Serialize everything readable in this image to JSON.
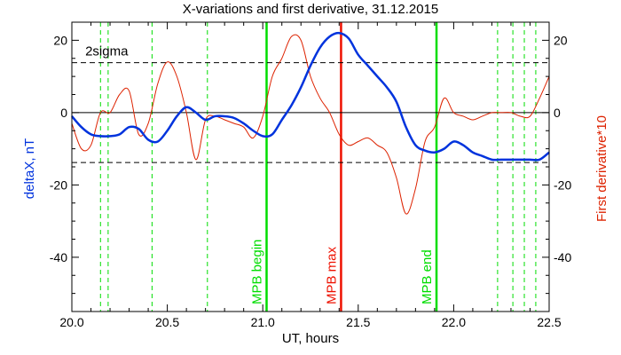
{
  "chart_data": {
    "type": "line",
    "title": "X-variations and first derivative, 31.12.2015",
    "xlabel": "UT, hours",
    "ylabel": "deltaX, nT",
    "ylabel_right": "First derivative*10",
    "xlim": [
      20.0,
      22.5
    ],
    "ylim": [
      -55,
      25
    ],
    "xticks": [
      "20.0",
      "20.5",
      "21.0",
      "21.5",
      "22.0",
      "22.5"
    ],
    "yticks": [
      "20",
      "0",
      "-20",
      "-40"
    ],
    "grid": false,
    "colors": {
      "deltaX": "#0033dd",
      "derivative": "#dd2200",
      "green": "#00dd00",
      "red": "#ee1100"
    },
    "series": [
      {
        "name": "deltaX",
        "axis": "left",
        "x": [
          20.0,
          20.05,
          20.1,
          20.15,
          20.2,
          20.25,
          20.3,
          20.35,
          20.4,
          20.45,
          20.5,
          20.55,
          20.6,
          20.65,
          20.7,
          20.75,
          20.8,
          20.85,
          20.9,
          20.95,
          21.0,
          21.05,
          21.1,
          21.15,
          21.2,
          21.25,
          21.3,
          21.35,
          21.4,
          21.45,
          21.5,
          21.55,
          21.6,
          21.65,
          21.7,
          21.75,
          21.8,
          21.85,
          21.9,
          21.95,
          22.0,
          22.05,
          22.1,
          22.15,
          22.2,
          22.25,
          22.3,
          22.35,
          22.4,
          22.45,
          22.5
        ],
        "values": [
          -1,
          -4,
          -6,
          -6.5,
          -6.5,
          -6,
          -4,
          -4.5,
          -7.5,
          -8,
          -5,
          -1,
          1.5,
          0,
          -2,
          -1,
          -1,
          -1.5,
          -3,
          -5,
          -6.5,
          -6,
          -2,
          2,
          7,
          13,
          18,
          21,
          22,
          20.5,
          16,
          13,
          10,
          7,
          3,
          -4,
          -9,
          -10.5,
          -11,
          -10,
          -8,
          -9,
          -11,
          -12,
          -13,
          -13,
          -13,
          -13,
          -13,
          -13,
          -11
        ]
      },
      {
        "name": "First derivative*10",
        "axis": "right",
        "x": [
          20.0,
          20.05,
          20.1,
          20.15,
          20.2,
          20.25,
          20.3,
          20.35,
          20.4,
          20.45,
          20.5,
          20.55,
          20.6,
          20.65,
          20.7,
          20.75,
          20.8,
          20.85,
          20.9,
          20.95,
          21.0,
          21.05,
          21.1,
          21.15,
          21.2,
          21.25,
          21.3,
          21.35,
          21.4,
          21.45,
          21.5,
          21.55,
          21.6,
          21.65,
          21.7,
          21.75,
          21.8,
          21.85,
          21.9,
          21.95,
          22.0,
          22.05,
          22.1,
          22.15,
          22.2,
          22.25,
          22.3,
          22.35,
          22.4,
          22.45,
          22.5
        ],
        "values": [
          -3,
          -10,
          -9,
          0,
          0,
          5,
          6,
          -6,
          -3,
          8,
          14,
          10,
          0,
          -13,
          -2,
          -1,
          -2,
          -3,
          -4,
          -7,
          -1,
          10,
          15,
          21,
          20,
          10,
          4,
          0,
          -6,
          -9,
          -8,
          -7,
          -9,
          -11,
          -18,
          -28,
          -21,
          -8,
          -4,
          4,
          0,
          -1,
          -2,
          -1,
          0,
          0,
          0,
          -1,
          -1,
          4,
          10
        ]
      }
    ],
    "reference_lines": {
      "zero": 0,
      "sigma": {
        "label": "2sigma",
        "value": 13.8
      }
    },
    "vertical_markers": {
      "dashed_green": [
        20.15,
        20.19,
        20.42,
        20.71,
        22.23,
        22.31,
        22.37,
        22.43
      ],
      "labeled": [
        {
          "label": "MPB begin",
          "x": 21.02,
          "color": "green"
        },
        {
          "label": "MPB max",
          "x": 21.41,
          "color": "red"
        },
        {
          "label": "MPB end",
          "x": 21.91,
          "color": "green"
        }
      ]
    }
  }
}
